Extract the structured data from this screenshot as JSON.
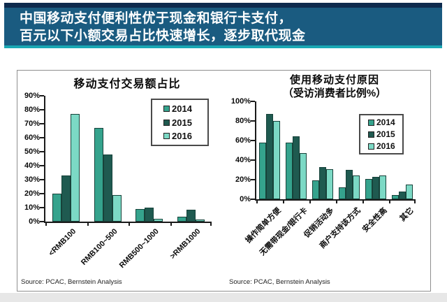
{
  "banner": {
    "line1": "中国移动支付便利性优于现金和银行卡支付，",
    "line2": "百元以下小额交易占比快速增长，逐步取代现金",
    "bg_color": "#1a5b80",
    "top_strip_color": "#0e2a4d",
    "bottom_strip_color": "#1aa8b4",
    "text_color": "#ffffff"
  },
  "series_colors": {
    "2014": "#35a38d",
    "2015": "#1f5a50",
    "2016": "#7cd9c5"
  },
  "bar_border_color": "#17423a",
  "chart_data": [
    {
      "type": "bar",
      "title": "移动支付交易额占比",
      "categories": [
        "<RMB100",
        "RMB100~500",
        "RMB500~1000",
        ">RMB1000"
      ],
      "series": [
        {
          "name": "2014",
          "values": [
            20,
            67,
            9,
            3.5
          ]
        },
        {
          "name": "2015",
          "values": [
            33,
            48,
            10,
            8.5
          ]
        },
        {
          "name": "2016",
          "values": [
            77,
            19,
            2,
            1.5
          ]
        }
      ],
      "ylabel": "",
      "ylim": [
        0,
        90
      ],
      "ytick_step": 10,
      "grid": false,
      "legend_position": "top-right",
      "legend_entries": [
        "2014",
        "2015",
        "2016"
      ],
      "source": "Source: PCAC, Bernstein Analysis"
    },
    {
      "type": "bar",
      "title": "使用移动支付原因",
      "subtitle": "（受访消费者比例%）",
      "categories": [
        "操作简单方便",
        "无需带现金/银行卡",
        "促销活动多",
        "商户支持该方式",
        "安全性高",
        "其它"
      ],
      "series": [
        {
          "name": "2014",
          "values": [
            58,
            58,
            19,
            12,
            21,
            4
          ]
        },
        {
          "name": "2015",
          "values": [
            87,
            64,
            33,
            30,
            23,
            8
          ]
        },
        {
          "name": "2016",
          "values": [
            80,
            47,
            31,
            24,
            24,
            15
          ]
        }
      ],
      "ylabel": "",
      "ylim": [
        0,
        100
      ],
      "ytick_step": 20,
      "grid": false,
      "legend_position": "top-right",
      "legend_entries": [
        "2014",
        "2015",
        "2016"
      ],
      "source": "Source: PCAC, Bernstein Analysis"
    }
  ]
}
